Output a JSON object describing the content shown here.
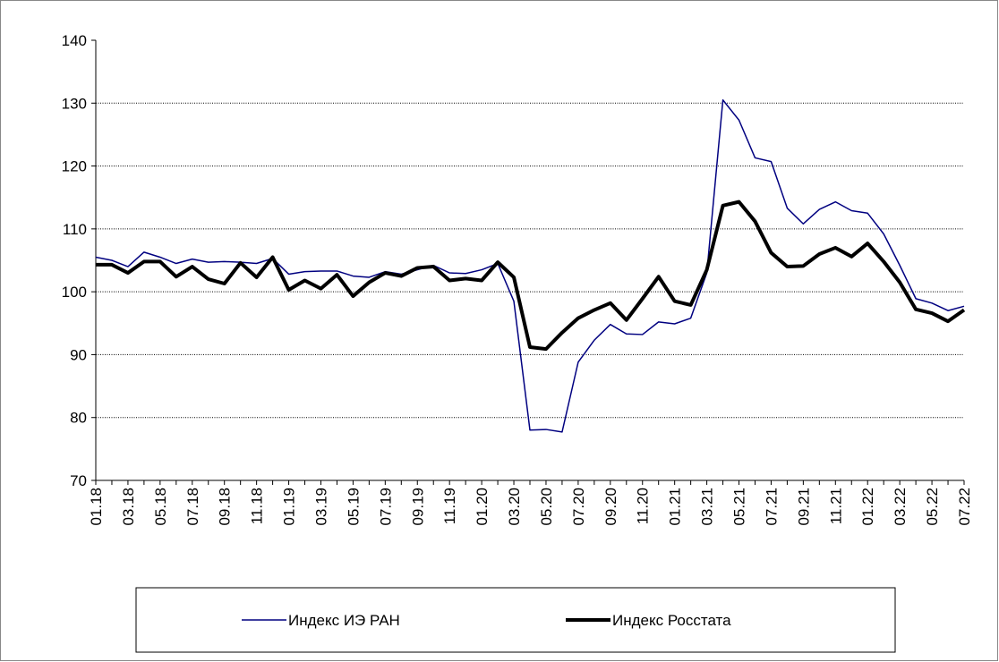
{
  "chart_data": {
    "type": "line",
    "categories": [
      "01.18",
      null,
      "03.18",
      null,
      "05.18",
      null,
      "07.18",
      null,
      "09.18",
      null,
      "11.18",
      null,
      "01.19",
      null,
      "03.19",
      null,
      "05.19",
      null,
      "07.19",
      null,
      "09.19",
      null,
      "11.19",
      null,
      "01.20",
      null,
      "03.20",
      null,
      "05.20",
      null,
      "07.20",
      null,
      "09.20",
      null,
      "11.20",
      null,
      "01.21",
      null,
      "03.21",
      null,
      "05.21",
      null,
      "07.21",
      null,
      "09.21",
      null,
      "11.21",
      null,
      "01.22",
      null,
      "03.22",
      null,
      "05.22",
      null,
      "07.22"
    ],
    "series": [
      {
        "name": "Индекс ИЭ РАН",
        "color": "#000080",
        "width": 1.5,
        "values": [
          105.5,
          105,
          104,
          106.3,
          105.5,
          104.5,
          105.2,
          104.7,
          104.8,
          104.7,
          104.5,
          105.3,
          102.8,
          103.2,
          103.3,
          103.3,
          102.5,
          102.3,
          103.2,
          102.8,
          103.5,
          104.2,
          103,
          102.9,
          103.5,
          104.5,
          98.5,
          78,
          78.1,
          77.7,
          88.8,
          92.3,
          94.8,
          93.3,
          93.2,
          95.2,
          94.9,
          95.8,
          103,
          130.5,
          127.3,
          121.3,
          120.7,
          113.3,
          110.8,
          113.1,
          114.3,
          112.9,
          112.5,
          109.2,
          104.2,
          98.9,
          98.2,
          97,
          97.7
        ]
      },
      {
        "name": "Индекс Росстата",
        "color": "#000000",
        "width": 4,
        "values": [
          104.3,
          104.3,
          103,
          104.8,
          104.8,
          102.4,
          104,
          102,
          101.3,
          104.6,
          102.3,
          105.5,
          100.3,
          101.8,
          100.5,
          102.7,
          99.3,
          101.5,
          103,
          102.5,
          103.8,
          104,
          101.8,
          102.1,
          101.8,
          104.7,
          102.3,
          91.2,
          90.9,
          93.5,
          95.8,
          97.1,
          98.2,
          95.5,
          98.9,
          102.4,
          98.5,
          97.9,
          103.5,
          113.7,
          114.3,
          111.2,
          106.2,
          104,
          104.1,
          106,
          107,
          105.6,
          107.7,
          104.8,
          101.5,
          97.2,
          96.6,
          95.3,
          97.1
        ]
      }
    ],
    "ylim": [
      70,
      140
    ],
    "yticks": [
      70,
      80,
      90,
      100,
      110,
      120,
      130,
      140
    ],
    "grid": true,
    "legend": "bottom"
  }
}
